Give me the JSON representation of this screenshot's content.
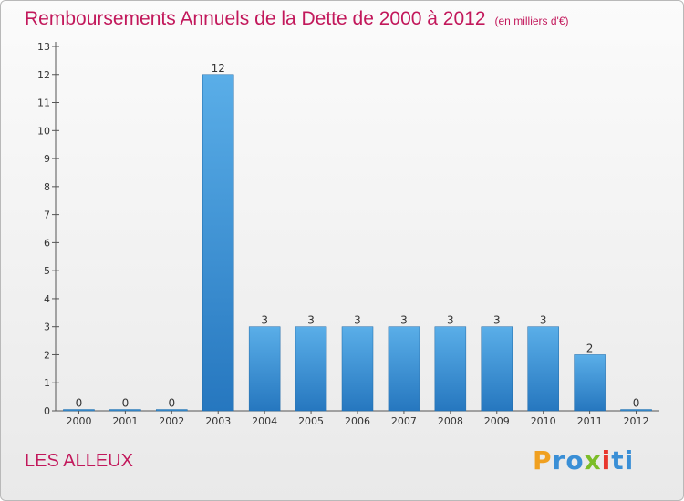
{
  "chart_data": {
    "type": "bar",
    "title": "Remboursements Annuels de la Dette de 2000 à 2012",
    "subtitle": "(en milliers d'€)",
    "categories": [
      "2000",
      "2001",
      "2002",
      "2003",
      "2004",
      "2005",
      "2006",
      "2007",
      "2008",
      "2009",
      "2010",
      "2011",
      "2012"
    ],
    "values": [
      0,
      0,
      0,
      12,
      3,
      3,
      3,
      3,
      3,
      3,
      3,
      2,
      0
    ],
    "ylim": [
      0,
      13
    ],
    "yticks": [
      0,
      1,
      2,
      3,
      4,
      5,
      6,
      7,
      8,
      9,
      10,
      11,
      12,
      13
    ],
    "bar_color": "#3a8fd6",
    "grid": false,
    "legend": "none"
  },
  "city": "LES ALLEUX",
  "logo": {
    "letters": [
      "P",
      "r",
      "o",
      "x",
      "i",
      "t",
      "i"
    ],
    "colors": [
      "#f0a020",
      "#3a8fd6",
      "#3a8fd6",
      "#7cbd28",
      "#e8362d",
      "#3a8fd6",
      "#3a8fd6"
    ]
  }
}
